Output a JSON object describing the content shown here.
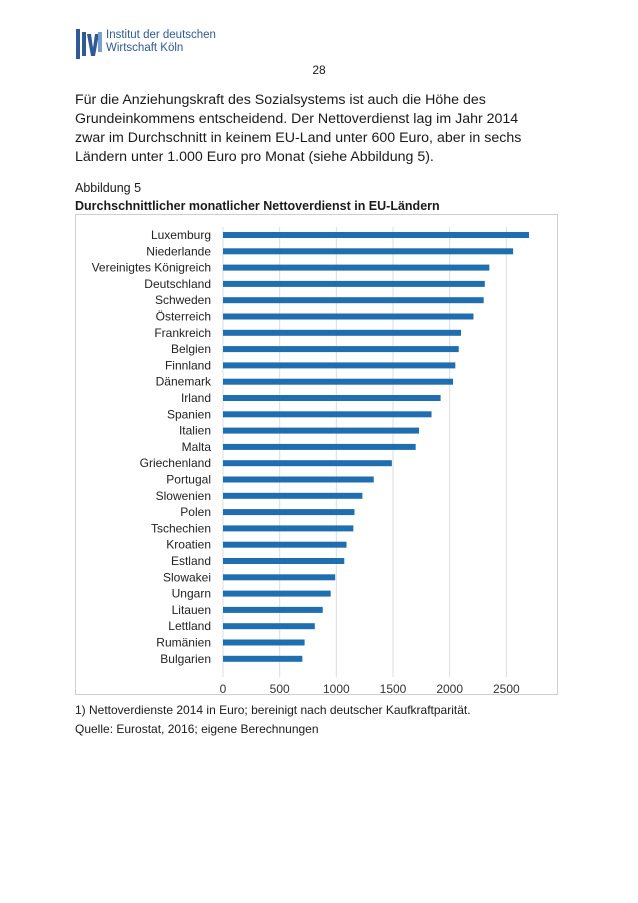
{
  "header": {
    "logo_lines": [
      "Institut der deutschen",
      "Wirtschaft Köln"
    ],
    "page_number": "28"
  },
  "intro": {
    "lines": [
      "Für die Anziehungskraft des Sozialsystems ist auch die Höhe des",
      "Grundeinkommens entscheidend. Der Nettoverdienst lag im Jahr 2014",
      "zwar im Durchschnitt in keinem EU-Land unter 600 Euro, aber in sechs",
      "Ländern unter 1.000 Euro pro Monat (siehe Abbildung 5)."
    ]
  },
  "figure": {
    "label": "Abbildung 5",
    "title": "Durchschnittlicher monatlicher Nettoverdienst in EU-Ländern",
    "note": "1) Nettoverdienste 2014 in Euro; bereinigt nach deutscher Kaufkraftparität.",
    "source": "Quelle: Eurostat, 2016; eigene Berechnungen"
  },
  "colors": {
    "bar": "#1f6eb0",
    "grid": "#dcdcdc",
    "logo": "#2f5a95"
  },
  "chart_data": {
    "type": "bar",
    "orientation": "horizontal",
    "categories": [
      "Luxemburg",
      "Niederlande",
      "Vereinigtes Königreich",
      "Deutschland",
      "Schweden",
      "Österreich",
      "Frankreich",
      "Belgien",
      "Finnland",
      "Dänemark",
      "Irland",
      "Spanien",
      "Italien",
      "Malta",
      "Griechenland",
      "Portugal",
      "Slowenien",
      "Polen",
      "Tschechien",
      "Kroatien",
      "Estland",
      "Slowakei",
      "Ungarn",
      "Litauen",
      "Lettland",
      "Rumänien",
      "Bulgarien"
    ],
    "values": [
      2700,
      2560,
      2350,
      2310,
      2300,
      2210,
      2100,
      2080,
      2050,
      2030,
      1920,
      1840,
      1730,
      1700,
      1490,
      1330,
      1230,
      1160,
      1150,
      1090,
      1070,
      990,
      950,
      880,
      810,
      720,
      700
    ],
    "xlim": [
      0,
      2700
    ],
    "xticks": [
      0,
      500,
      1000,
      1500,
      2000,
      2500
    ],
    "grid": true
  }
}
